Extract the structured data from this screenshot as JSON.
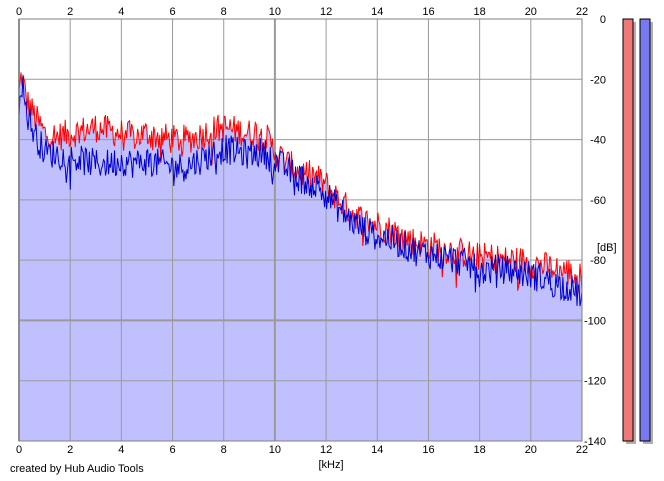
{
  "chart_data": {
    "type": "area",
    "title": "",
    "xlabel": "[kHz]",
    "ylabel": "[dB]",
    "xlim": [
      0,
      22
    ],
    "ylim": [
      -140,
      0
    ],
    "x_ticks": [
      0,
      2,
      4,
      6,
      8,
      10,
      12,
      14,
      16,
      18,
      20,
      22
    ],
    "y_ticks": [
      0,
      -20,
      -40,
      -60,
      -80,
      -100,
      -120,
      -140
    ],
    "x_tick_labels": [
      "0",
      "2",
      "4",
      "6",
      "8",
      "10",
      "12",
      "14",
      "16",
      "18",
      "20",
      "22"
    ],
    "y_tick_labels": [
      "0",
      "-20",
      "-40",
      "-60",
      "-80",
      "-100",
      "-120",
      "-140"
    ],
    "grid": true,
    "series": [
      {
        "color": "#ff0000",
        "x": [
          0,
          0.1,
          0.3,
          0.6,
          1.0,
          1.5,
          2.0,
          2.5,
          3.0,
          3.5,
          4.0,
          4.5,
          5.0,
          5.5,
          6.0,
          6.5,
          7.0,
          7.5,
          8.0,
          8.5,
          9.0,
          9.5,
          10.0,
          10.5,
          11.0,
          11.5,
          12.0,
          12.5,
          13.0,
          13.5,
          14.0,
          14.5,
          15.0,
          15.5,
          16.0,
          16.5,
          17.0,
          17.5,
          18.0,
          18.5,
          19.0,
          19.5,
          20.0,
          20.5,
          21.0,
          21.5,
          22.0
        ],
        "y": [
          -25,
          -18,
          -27,
          -32,
          -38,
          -39,
          -38,
          -37,
          -36,
          -37,
          -38,
          -39,
          -38,
          -39,
          -40,
          -40,
          -39,
          -37,
          -36,
          -37,
          -38,
          -37,
          -44,
          -48,
          -51,
          -52,
          -55,
          -60,
          -64,
          -67,
          -68,
          -70,
          -72,
          -74,
          -75,
          -76,
          -77,
          -78,
          -79,
          -79,
          -80,
          -80,
          -81,
          -82,
          -83,
          -84,
          -86
        ]
      },
      {
        "color": "#0000cc",
        "x": [
          0,
          0.1,
          0.3,
          0.6,
          1.0,
          1.5,
          2.0,
          2.5,
          3.0,
          3.5,
          4.0,
          4.5,
          5.0,
          5.5,
          6.0,
          6.5,
          7.0,
          7.5,
          8.0,
          8.5,
          9.0,
          9.5,
          10.0,
          10.5,
          11.0,
          11.5,
          12.0,
          12.5,
          13.0,
          13.5,
          14.0,
          14.5,
          15.0,
          15.5,
          16.0,
          16.5,
          17.0,
          17.5,
          18.0,
          18.5,
          19.0,
          19.5,
          20.0,
          20.5,
          21.0,
          21.5,
          22.0
        ],
        "y": [
          -28,
          -20,
          -31,
          -38,
          -44,
          -45,
          -46,
          -47,
          -48,
          -48,
          -47,
          -48,
          -47,
          -48,
          -49,
          -49,
          -47,
          -45,
          -43,
          -44,
          -45,
          -44,
          -47,
          -50,
          -53,
          -55,
          -58,
          -63,
          -67,
          -70,
          -72,
          -73,
          -75,
          -77,
          -78,
          -79,
          -80,
          -81,
          -84,
          -83,
          -83,
          -84,
          -85,
          -86,
          -88,
          -89,
          -92
        ]
      }
    ],
    "fill_color": "#c0c0ff",
    "level_meters": [
      {
        "color": "#f07878",
        "level": 0.0
      },
      {
        "color": "#7878f0",
        "level": 0.0
      }
    ]
  },
  "footer": {
    "credit": "created by Hub Audio Tools"
  }
}
